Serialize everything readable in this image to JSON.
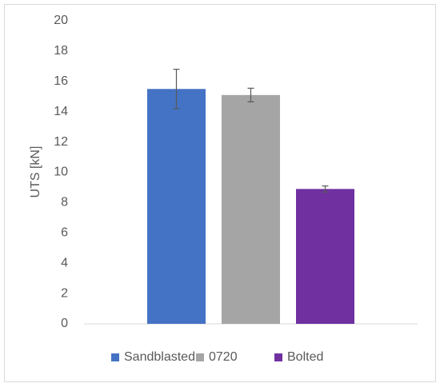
{
  "chart_data": {
    "type": "bar",
    "y_label": "UTS [kN]",
    "categories": [
      null
    ],
    "series": [
      {
        "name": "Sandblasted",
        "color": "#4472c4",
        "values": [
          15.5
        ],
        "errors": [
          1.3
        ]
      },
      {
        "name": "0720",
        "color": "#a5a5a5",
        "values": [
          15.1
        ],
        "errors": [
          0.45
        ]
      },
      {
        "name": "Bolted",
        "color": "#7030a0",
        "values": [
          8.9
        ],
        "errors": [
          0.2
        ]
      }
    ],
    "ylim": [
      0,
      20
    ],
    "yticks": [
      0,
      2,
      4,
      6,
      8,
      10,
      12,
      14,
      16,
      18,
      20
    ],
    "grid": false,
    "legend": "bottom"
  }
}
